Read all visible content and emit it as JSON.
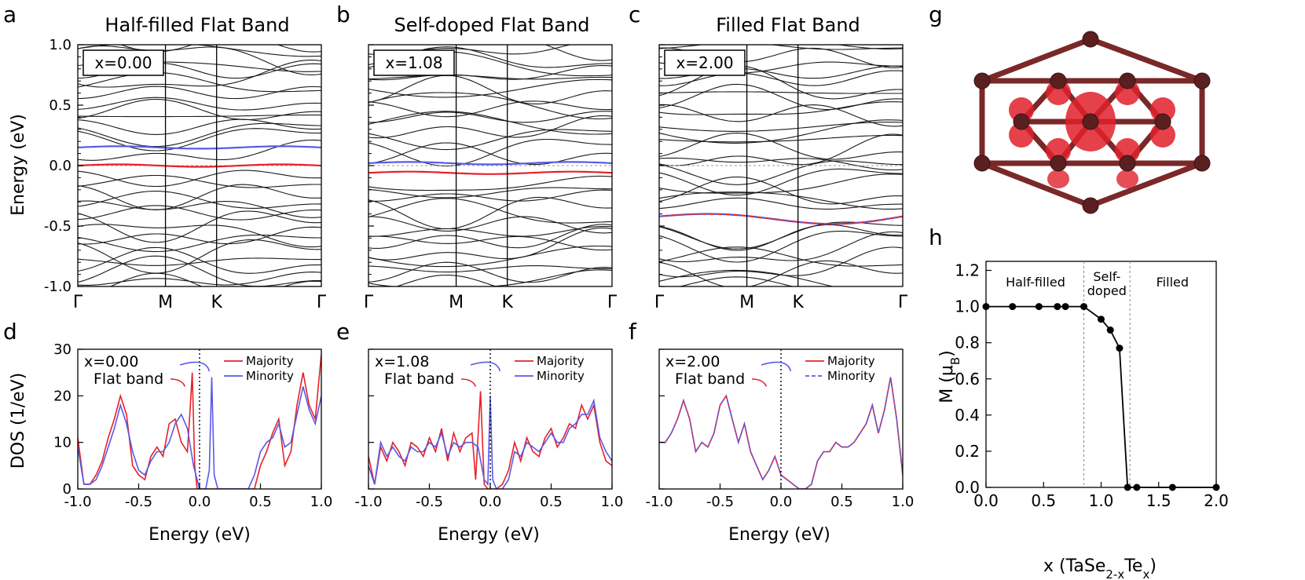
{
  "panel_letters": {
    "a": "a",
    "b": "b",
    "c": "c",
    "d": "d",
    "e": "e",
    "f": "f",
    "g": "g",
    "h": "h"
  },
  "colors": {
    "majority": "#e8202a",
    "minority": "#5a5ae6",
    "bands": "#1a1a1a",
    "structure_bond": "#7a2828",
    "structure_lobe": "#e0202a"
  },
  "chart_data": [
    {
      "id": "a",
      "type": "line",
      "title": "Half-filled Flat Band",
      "ylabel": "Energy (eV)",
      "ylim": [
        -1.0,
        1.0
      ],
      "yticks": [
        "1.0",
        "0.5",
        "0.0",
        "-0.5",
        "-1.0"
      ],
      "kpoints": [
        "Γ",
        "M",
        "K",
        "Γ"
      ],
      "inset": "x=0.00",
      "highlighted_bands": [
        {
          "name": "Majority flat band",
          "color": "#e8202a",
          "energy": 0.0
        },
        {
          "name": "Minority flat band",
          "color": "#5a5ae6",
          "energy": 0.15
        }
      ],
      "fermi_level": 0.0
    },
    {
      "id": "b",
      "type": "line",
      "title": "Self-doped Flat Band",
      "ylim": [
        -1.0,
        1.0
      ],
      "kpoints": [
        "Γ",
        "M",
        "K",
        "Γ"
      ],
      "inset": "x=1.08",
      "highlighted_bands": [
        {
          "name": "Majority flat band",
          "color": "#e8202a",
          "energy": -0.06
        },
        {
          "name": "Minority flat band",
          "color": "#5a5ae6",
          "energy": 0.02
        }
      ],
      "fermi_level": 0.0
    },
    {
      "id": "c",
      "type": "line",
      "title": "Filled Flat Band",
      "ylim": [
        -1.0,
        1.0
      ],
      "kpoints": [
        "Γ",
        "M",
        "K",
        "Γ"
      ],
      "inset": "x=2.00",
      "highlighted_bands": [
        {
          "name": "Flat band (degenerate)",
          "color": "#e8202a",
          "energy": -0.42
        }
      ],
      "fermi_level": 0.0
    },
    {
      "id": "d",
      "type": "line",
      "ylabel": "DOS (1/eV)",
      "xlabel": "Energy (eV)",
      "xlim": [
        -1.0,
        1.0
      ],
      "ylim": [
        0,
        30
      ],
      "xticks": [
        "-1.0",
        "-0.5",
        "0.0",
        "0.5",
        "1.0"
      ],
      "yticks": [
        "30",
        "20",
        "10",
        "0"
      ],
      "inset": "x=0.00",
      "annotation": "Flat band",
      "legend": [
        "Majority",
        "Minority"
      ],
      "series": [
        {
          "name": "Majority",
          "color": "#e8202a",
          "x": [
            -1.0,
            -0.95,
            -0.9,
            -0.85,
            -0.8,
            -0.75,
            -0.7,
            -0.65,
            -0.6,
            -0.55,
            -0.5,
            -0.45,
            -0.4,
            -0.35,
            -0.3,
            -0.25,
            -0.2,
            -0.15,
            -0.1,
            -0.08,
            -0.06,
            -0.04,
            -0.02,
            0.0,
            0.1,
            0.2,
            0.3,
            0.4,
            0.45,
            0.5,
            0.55,
            0.6,
            0.65,
            0.7,
            0.75,
            0.8,
            0.85,
            0.9,
            0.95,
            1.0
          ],
          "values": [
            11,
            1,
            1,
            3,
            6,
            11,
            15,
            20,
            16,
            5,
            3,
            2,
            7,
            9,
            7,
            14,
            15,
            10,
            8,
            16,
            25,
            5,
            0,
            0,
            0,
            0,
            0,
            0,
            0,
            5,
            8,
            12,
            15,
            5,
            8,
            18,
            25,
            18,
            15,
            29
          ]
        },
        {
          "name": "Minority",
          "color": "#5a5ae6",
          "x": [
            -1.0,
            -0.95,
            -0.9,
            -0.85,
            -0.8,
            -0.75,
            -0.7,
            -0.65,
            -0.6,
            -0.55,
            -0.5,
            -0.45,
            -0.4,
            -0.35,
            -0.3,
            -0.25,
            -0.2,
            -0.15,
            -0.1,
            -0.05,
            0.0,
            0.05,
            0.08,
            0.1,
            0.12,
            0.15,
            0.3,
            0.4,
            0.45,
            0.5,
            0.55,
            0.6,
            0.65,
            0.7,
            0.75,
            0.8,
            0.85,
            0.9,
            0.95,
            1.0
          ],
          "values": [
            9,
            1,
            1,
            2,
            5,
            9,
            13,
            18,
            14,
            8,
            4,
            3,
            6,
            8,
            8,
            10,
            14,
            16,
            13,
            5,
            0,
            0,
            4,
            24,
            3,
            0,
            0,
            0,
            3,
            8,
            10,
            11,
            14,
            9,
            10,
            16,
            22,
            17,
            14,
            20
          ]
        }
      ]
    },
    {
      "id": "e",
      "type": "line",
      "xlabel": "Energy (eV)",
      "xlim": [
        -1.0,
        1.0
      ],
      "ylim": [
        0,
        30
      ],
      "xticks": [
        "-1.0",
        "-0.5",
        "0.0",
        "0.5",
        "1.0"
      ],
      "inset": "x=1.08",
      "annotation": "Flat band",
      "legend": [
        "Majority",
        "Minority"
      ],
      "series": [
        {
          "name": "Majority",
          "color": "#e8202a",
          "x": [
            -1.0,
            -0.95,
            -0.9,
            -0.85,
            -0.8,
            -0.75,
            -0.7,
            -0.65,
            -0.6,
            -0.55,
            -0.5,
            -0.45,
            -0.4,
            -0.35,
            -0.3,
            -0.25,
            -0.2,
            -0.15,
            -0.12,
            -0.08,
            -0.05,
            -0.02,
            0.0,
            0.05,
            0.1,
            0.15,
            0.2,
            0.25,
            0.3,
            0.35,
            0.4,
            0.45,
            0.5,
            0.55,
            0.6,
            0.65,
            0.7,
            0.75,
            0.8,
            0.85,
            0.9,
            0.95,
            1.0
          ],
          "values": [
            7,
            1,
            9,
            6,
            10,
            8,
            5,
            10,
            9,
            7,
            11,
            8,
            13,
            6,
            12,
            8,
            11,
            12,
            2,
            21,
            1,
            0,
            0,
            0,
            1,
            4,
            10,
            6,
            11,
            8,
            7,
            11,
            13,
            9,
            11,
            14,
            13,
            18,
            15,
            18,
            10,
            6,
            5
          ]
        },
        {
          "name": "Minority",
          "color": "#5a5ae6",
          "x": [
            -1.0,
            -0.95,
            -0.9,
            -0.85,
            -0.8,
            -0.75,
            -0.7,
            -0.65,
            -0.6,
            -0.55,
            -0.5,
            -0.45,
            -0.4,
            -0.35,
            -0.3,
            -0.25,
            -0.2,
            -0.15,
            -0.1,
            -0.05,
            -0.02,
            0.0,
            0.02,
            0.05,
            0.1,
            0.15,
            0.2,
            0.25,
            0.3,
            0.35,
            0.4,
            0.45,
            0.5,
            0.55,
            0.6,
            0.65,
            0.7,
            0.75,
            0.8,
            0.85,
            0.9,
            0.95,
            1.0
          ],
          "values": [
            5,
            1,
            10,
            7,
            9,
            7,
            6,
            9,
            8,
            8,
            10,
            9,
            12,
            7,
            10,
            9,
            10,
            10,
            9,
            2,
            1,
            20,
            2,
            0,
            0,
            2,
            8,
            7,
            10,
            9,
            8,
            10,
            12,
            10,
            10,
            13,
            14,
            16,
            16,
            19,
            11,
            8,
            6
          ]
        }
      ]
    },
    {
      "id": "f",
      "type": "line",
      "xlabel": "Energy (eV)",
      "xlim": [
        -1.0,
        1.0
      ],
      "ylim": [
        0,
        30
      ],
      "xticks": [
        "-1.0",
        "-0.5",
        "0.0",
        "0.5",
        "1.0"
      ],
      "inset": "x=2.00",
      "annotation": "Flat band",
      "legend": [
        "Majority",
        "Minority"
      ],
      "series": [
        {
          "name": "Majority",
          "color": "#e8202a",
          "x": [
            -1.0,
            -0.95,
            -0.9,
            -0.85,
            -0.8,
            -0.75,
            -0.7,
            -0.65,
            -0.6,
            -0.55,
            -0.5,
            -0.45,
            -0.4,
            -0.35,
            -0.3,
            -0.25,
            -0.2,
            -0.15,
            -0.1,
            -0.05,
            0.0,
            0.05,
            0.1,
            0.15,
            0.2,
            0.25,
            0.3,
            0.35,
            0.4,
            0.45,
            0.5,
            0.55,
            0.6,
            0.65,
            0.7,
            0.75,
            0.8,
            0.85,
            0.9,
            0.95,
            1.0
          ],
          "values": [
            10,
            10,
            12,
            15,
            19,
            15,
            8,
            10,
            9,
            12,
            18,
            20,
            15,
            10,
            14,
            8,
            5,
            2,
            4,
            7,
            3,
            2,
            1,
            0,
            0,
            1,
            6,
            8,
            8,
            10,
            9,
            9,
            10,
            12,
            14,
            18,
            12,
            17,
            24,
            15,
            3
          ]
        },
        {
          "name": "Minority",
          "color": "#5a5ae6",
          "dashed": true,
          "x": [
            -1.0,
            -0.95,
            -0.9,
            -0.85,
            -0.8,
            -0.75,
            -0.7,
            -0.65,
            -0.6,
            -0.55,
            -0.5,
            -0.45,
            -0.4,
            -0.35,
            -0.3,
            -0.25,
            -0.2,
            -0.15,
            -0.1,
            -0.05,
            0.0,
            0.05,
            0.1,
            0.15,
            0.2,
            0.25,
            0.3,
            0.35,
            0.4,
            0.45,
            0.5,
            0.55,
            0.6,
            0.65,
            0.7,
            0.75,
            0.8,
            0.85,
            0.9,
            0.95,
            1.0
          ],
          "values": [
            10,
            10,
            12,
            15,
            19,
            15,
            8,
            10,
            9,
            12,
            18,
            20,
            15,
            10,
            14,
            8,
            5,
            2,
            4,
            7,
            3,
            2,
            1,
            0,
            0,
            1,
            6,
            8,
            8,
            10,
            9,
            9,
            10,
            12,
            14,
            18,
            12,
            17,
            24,
            15,
            3
          ]
        }
      ]
    },
    {
      "id": "h",
      "type": "scatter",
      "xlabel": "x (TaSe",
      "xlabel_sub1": "2-x",
      "xlabel_mid": "Te",
      "xlabel_sub2": "x",
      "xlabel_end": ")",
      "ylabel": "M (μ",
      "ylabel_sub": "B",
      "ylabel_end": ")",
      "xlim": [
        0.0,
        2.0
      ],
      "ylim": [
        0.0,
        1.25
      ],
      "xticks": [
        "0.0",
        "0.5",
        "1.0",
        "1.5",
        "2.0"
      ],
      "yticks": [
        "1.2",
        "1.0",
        "0.8",
        "0.6",
        "0.4",
        "0.2",
        "0.0"
      ],
      "regions": [
        "Half-filled",
        "Self-",
        "doped",
        "Filled"
      ],
      "region_boundaries": [
        0.85,
        1.25
      ],
      "x": [
        0.0,
        0.23,
        0.46,
        0.62,
        0.69,
        0.85,
        1.0,
        1.08,
        1.16,
        1.23,
        1.31,
        1.62,
        2.0
      ],
      "values": [
        1.0,
        1.0,
        1.0,
        1.0,
        1.0,
        1.0,
        0.93,
        0.87,
        0.77,
        0.0,
        0.0,
        0.0,
        0.0
      ]
    }
  ]
}
